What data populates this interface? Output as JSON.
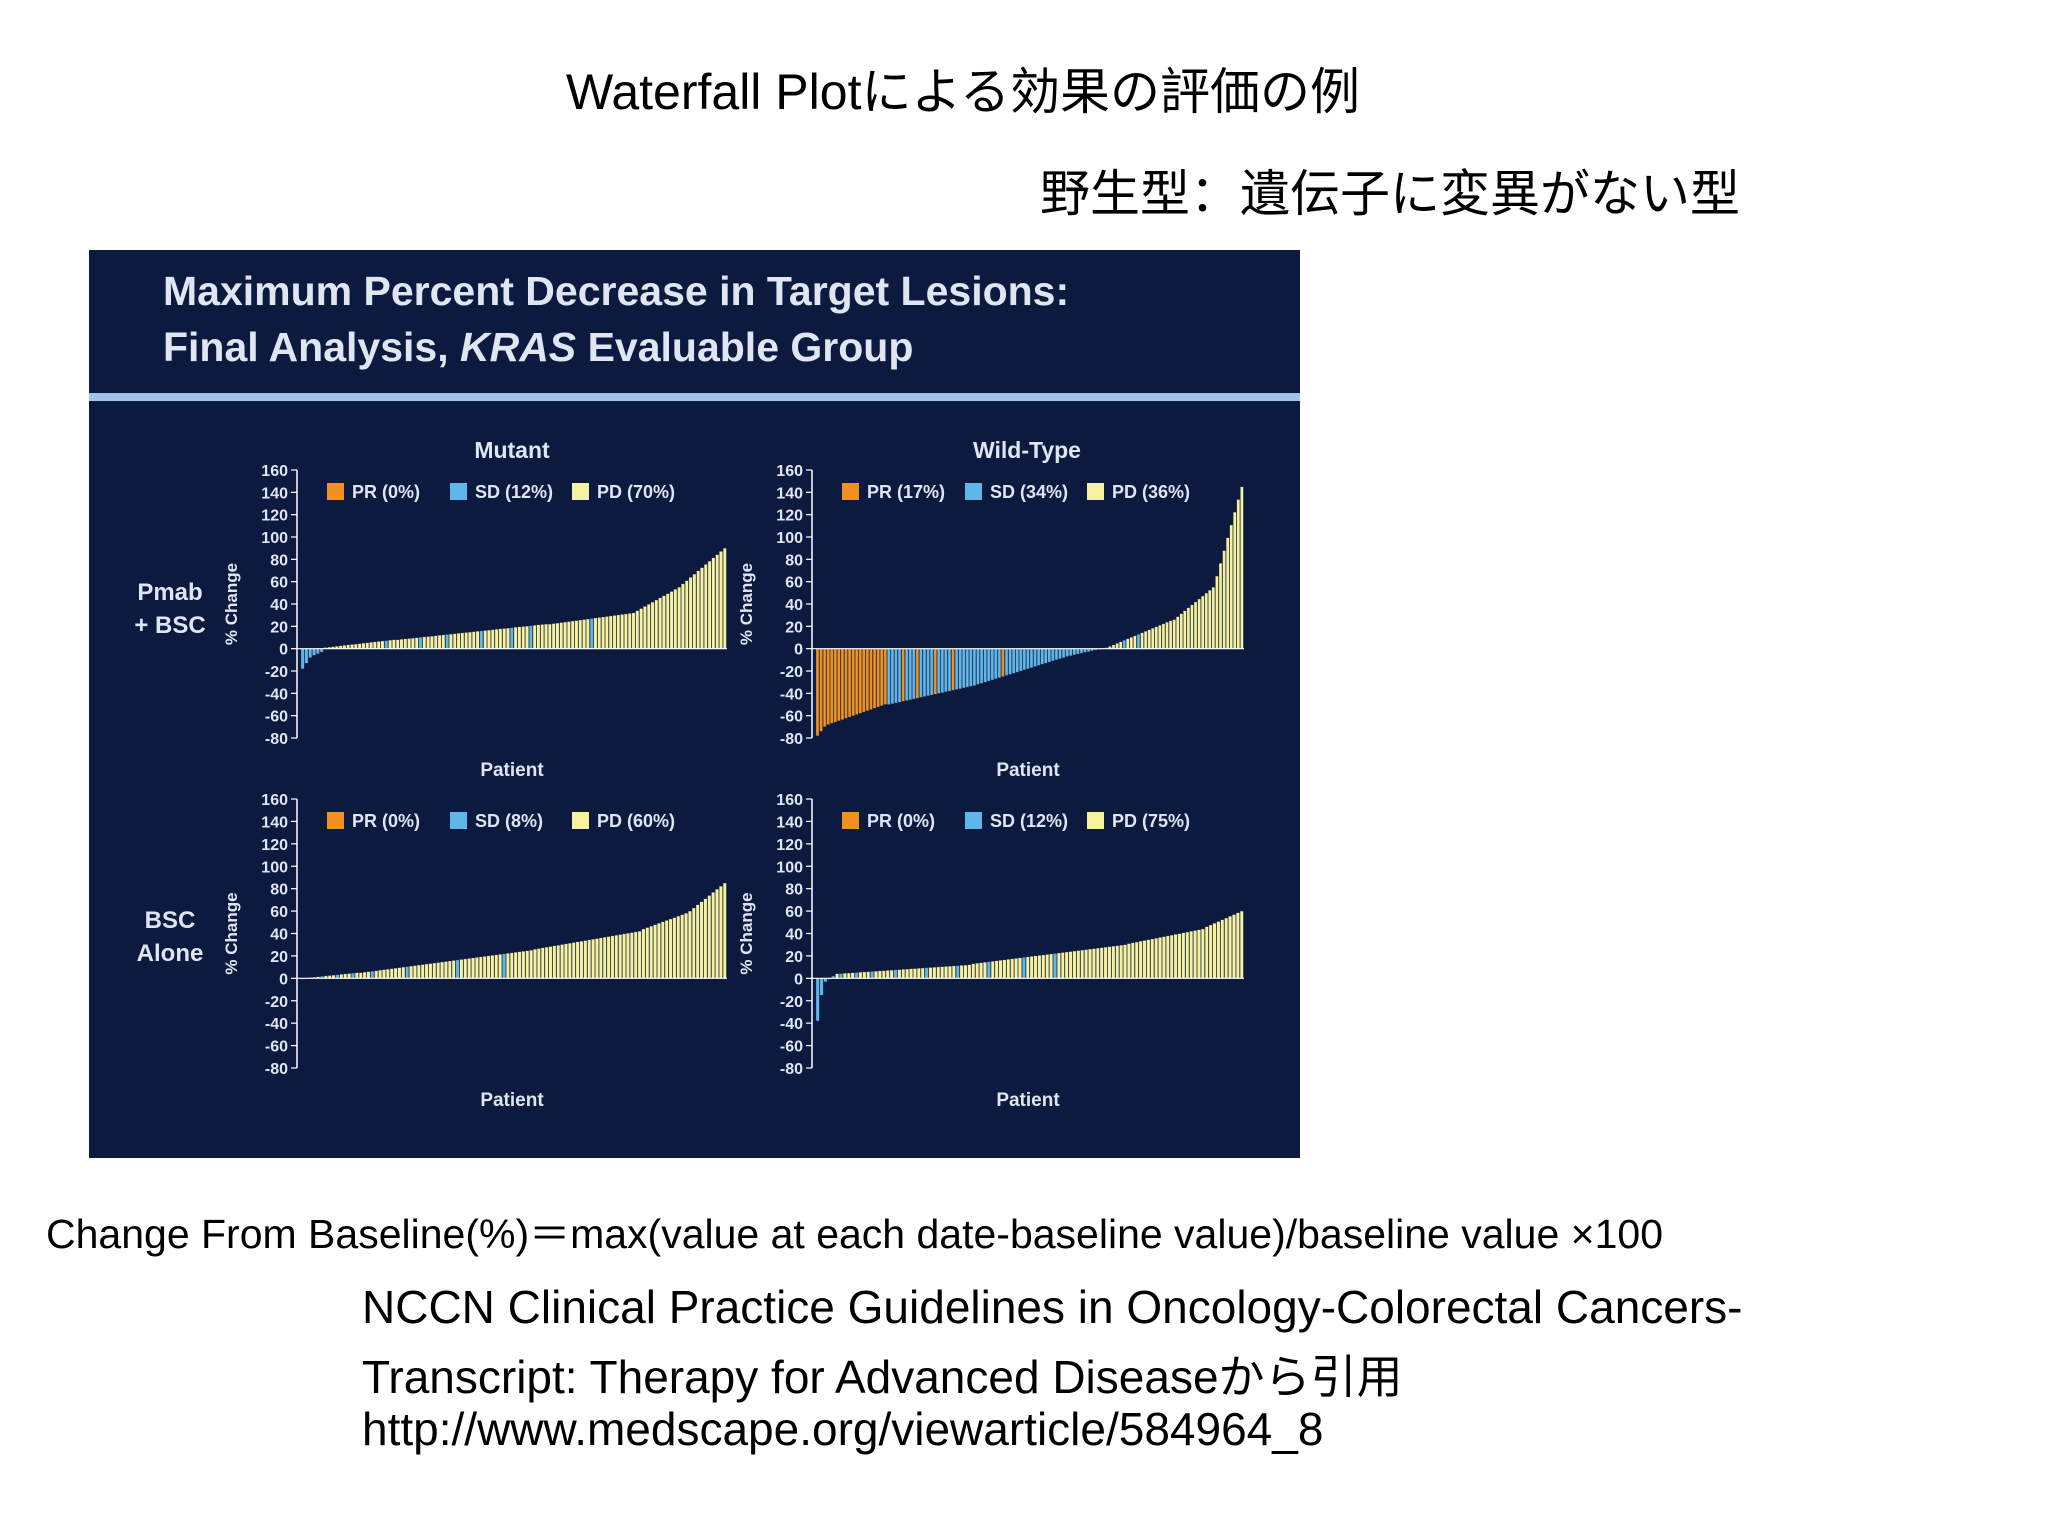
{
  "slide": {
    "title": "Waterfall Plotによる効果の評価の例",
    "subtitle": "野生型：遺伝子に変異がない型",
    "formula": "Change From Baseline(%)＝max(value at each date-baseline value)/baseline value ×100",
    "citation_line1": "NCCN Clinical Practice Guidelines in Oncology-Colorectal Cancers-",
    "citation_line2": "Transcript: Therapy for Advanced Diseaseから引用",
    "citation_line3": "http://www.medscape.org/viewarticle/584964_8"
  },
  "figure": {
    "title_line1": "Maximum Percent Decrease in Target Lesions:",
    "title_line2_pre": "Final Analysis, ",
    "title_line2_em": "KRAS",
    "title_line2_post": " Evaluable Group",
    "col_headers": [
      "Mutant",
      "Wild-Type"
    ],
    "row_labels": [
      [
        "Pmab",
        "+ BSC"
      ],
      [
        "BSC",
        "Alone"
      ]
    ]
  },
  "colors": {
    "background": "#0c1a3f",
    "PR": "#f0901e",
    "SD": "#5fb6e8",
    "PD": "#f7f2a0",
    "axis": "#ffffff",
    "text": "#dfe6f2"
  },
  "chart_data": [
    {
      "type": "bar",
      "subtype": "waterfall",
      "ylabel": "% Change",
      "xlabel": "Patient",
      "ylim": [
        -80,
        160
      ],
      "yticks": [
        -80,
        -60,
        -40,
        -20,
        0,
        20,
        40,
        60,
        80,
        100,
        120,
        140,
        160
      ],
      "legend": [
        "PR (0%)",
        "SD (12%)",
        "PD (70%)"
      ],
      "legend_position": "top-left",
      "n": 112,
      "segments": [
        {
          "from": 0,
          "to": 3,
          "start": -18,
          "end": -8,
          "cat": "SD"
        },
        {
          "from": 3,
          "to": 6,
          "start": -6,
          "end": -3,
          "cat": "SD"
        },
        {
          "from": 6,
          "to": 25,
          "start": 1,
          "end": 8,
          "cat": "PD"
        },
        {
          "from": 25,
          "to": 65,
          "start": 8,
          "end": 22,
          "cat": "PD"
        },
        {
          "from": 65,
          "to": 88,
          "start": 22,
          "end": 32,
          "cat": "PD"
        },
        {
          "from": 88,
          "to": 100,
          "start": 34,
          "end": 55,
          "cat": "PD"
        },
        {
          "from": 100,
          "to": 112,
          "start": 58,
          "end": 90,
          "cat": "PD"
        }
      ],
      "sd_positions": [
        0,
        1,
        2,
        3,
        4,
        5,
        22,
        31,
        38,
        47,
        55,
        60,
        76
      ]
    },
    {
      "type": "bar",
      "subtype": "waterfall",
      "ylabel": "% Change",
      "xlabel": "Patient",
      "ylim": [
        -80,
        160
      ],
      "yticks": [
        -80,
        -60,
        -40,
        -20,
        0,
        20,
        40,
        60,
        80,
        100,
        120,
        140,
        160
      ],
      "legend": [
        "PR (17%)",
        "SD (34%)",
        "PD (36%)"
      ],
      "legend_position": "top-left",
      "n": 120,
      "segments": [
        {
          "from": 0,
          "to": 3,
          "start": -78,
          "end": -70,
          "cat": "PR"
        },
        {
          "from": 3,
          "to": 20,
          "start": -68,
          "end": -50,
          "cat": "PR"
        },
        {
          "from": 20,
          "to": 45,
          "start": -50,
          "end": -33,
          "cat": "SD"
        },
        {
          "from": 45,
          "to": 70,
          "start": -32,
          "end": -8,
          "cat": "SD"
        },
        {
          "from": 70,
          "to": 82,
          "start": -7,
          "end": 1,
          "cat": "SD"
        },
        {
          "from": 82,
          "to": 100,
          "start": 2,
          "end": 25,
          "cat": "PD"
        },
        {
          "from": 100,
          "to": 112,
          "start": 26,
          "end": 55,
          "cat": "PD"
        },
        {
          "from": 112,
          "to": 120,
          "start": 65,
          "end": 145,
          "cat": "PD"
        }
      ],
      "pr_positions": [
        24,
        28,
        33,
        38,
        52
      ],
      "sd_positions": [
        86,
        90
      ]
    },
    {
      "type": "bar",
      "subtype": "waterfall",
      "ylabel": "% Change",
      "xlabel": "Patient",
      "ylim": [
        -80,
        160
      ],
      "yticks": [
        -80,
        -60,
        -40,
        -20,
        0,
        20,
        40,
        60,
        80,
        100,
        120,
        140,
        160
      ],
      "legend": [
        "PR (0%)",
        "SD (8%)",
        "PD (60%)"
      ],
      "legend_position": "top-left",
      "n": 110,
      "segments": [
        {
          "from": 0,
          "to": 15,
          "start": 0,
          "end": 5,
          "cat": "PD"
        },
        {
          "from": 15,
          "to": 60,
          "start": 5,
          "end": 25,
          "cat": "PD"
        },
        {
          "from": 60,
          "to": 88,
          "start": 26,
          "end": 42,
          "cat": "PD"
        },
        {
          "from": 88,
          "to": 100,
          "start": 44,
          "end": 58,
          "cat": "PD"
        },
        {
          "from": 100,
          "to": 110,
          "start": 60,
          "end": 85,
          "cat": "PD"
        }
      ],
      "sd_positions": [
        5,
        9,
        13,
        18,
        27,
        40,
        52
      ]
    },
    {
      "type": "bar",
      "subtype": "waterfall",
      "ylabel": "% Change",
      "xlabel": "Patient",
      "ylim": [
        -80,
        160
      ],
      "yticks": [
        -80,
        -60,
        -40,
        -20,
        0,
        20,
        40,
        60,
        80,
        100,
        120,
        140,
        160
      ],
      "legend": [
        "PR (0%)",
        "SD (12%)",
        "PD (75%)"
      ],
      "legend_position": "top-left",
      "n": 110,
      "segments": [
        {
          "from": 0,
          "to": 2,
          "start": -38,
          "end": -15,
          "cat": "SD"
        },
        {
          "from": 2,
          "to": 5,
          "start": -3,
          "end": 2,
          "cat": "SD"
        },
        {
          "from": 5,
          "to": 40,
          "start": 4,
          "end": 12,
          "cat": "PD"
        },
        {
          "from": 40,
          "to": 80,
          "start": 13,
          "end": 30,
          "cat": "PD"
        },
        {
          "from": 80,
          "to": 100,
          "start": 31,
          "end": 44,
          "cat": "PD"
        },
        {
          "from": 100,
          "to": 110,
          "start": 46,
          "end": 60,
          "cat": "PD"
        }
      ],
      "sd_positions": [
        6,
        10,
        14,
        20,
        28,
        36,
        44,
        53,
        61
      ]
    }
  ]
}
